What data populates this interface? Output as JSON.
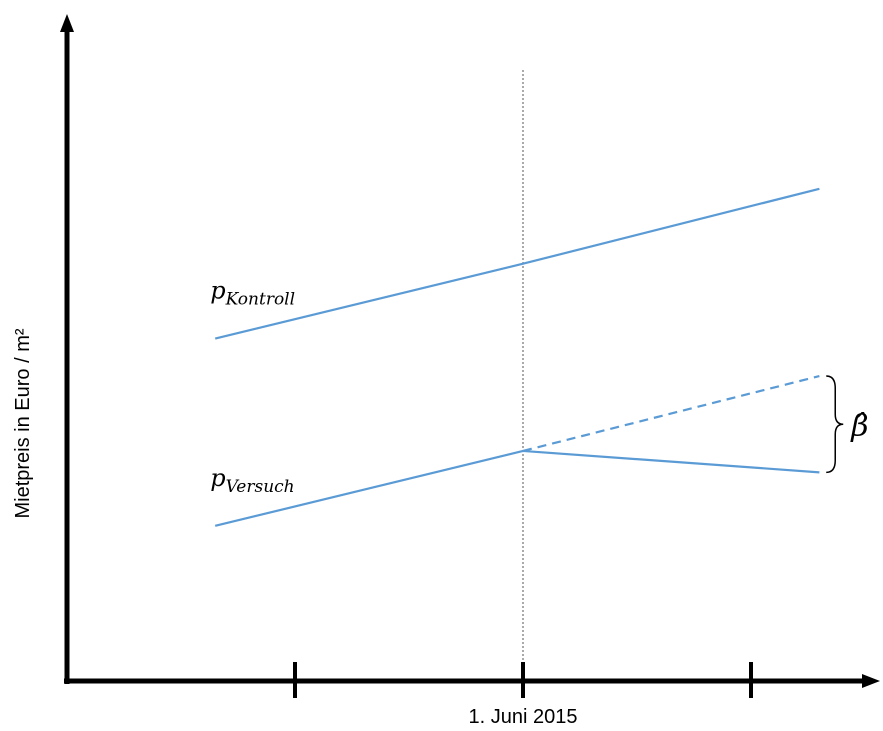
{
  "chart_data": {
    "type": "line",
    "title": "",
    "xlabel": "",
    "ylabel": "Mietpreis in Euro / m²",
    "x_ticks": [
      {
        "x": 1,
        "label": ""
      },
      {
        "x": 2,
        "label": "1. Juni 2015"
      },
      {
        "x": 3,
        "label": ""
      }
    ],
    "event_line": {
      "x": 2,
      "style": "dotted"
    },
    "xlim": [
      0,
      3.6
    ],
    "ylim": [
      0,
      10
    ],
    "series": [
      {
        "label_base": "p",
        "label_sub": "Kontroll",
        "color": "#5b9bd5",
        "points": [
          [
            0.65,
            6.4
          ],
          [
            2.0,
            7.8
          ],
          [
            3.3,
            9.2
          ]
        ],
        "style": "solid"
      },
      {
        "label_base": "p",
        "label_sub": "Versuch",
        "color": "#5b9bd5",
        "points": [
          [
            0.65,
            2.9
          ],
          [
            2.0,
            4.3
          ],
          [
            3.3,
            3.9
          ]
        ],
        "style": "solid"
      },
      {
        "label_base": "",
        "label_sub": "",
        "color": "#5b9bd5",
        "points": [
          [
            2.0,
            4.3
          ],
          [
            3.3,
            5.7
          ]
        ],
        "style": "dashed"
      }
    ],
    "annotation": {
      "label": "β̂",
      "brace_x": 3.33,
      "y_from": 3.9,
      "y_to": 5.7
    },
    "grid": false,
    "legend": "none"
  }
}
